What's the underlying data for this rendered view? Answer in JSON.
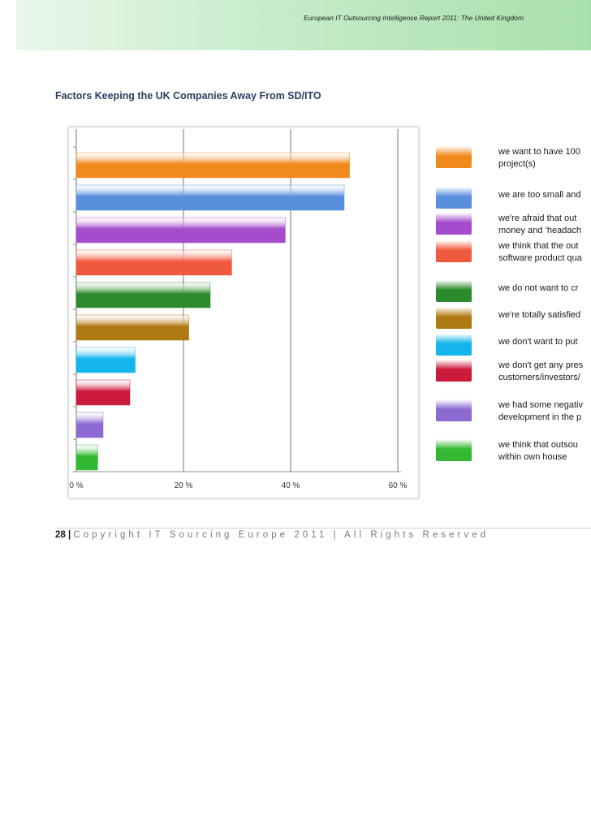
{
  "header": {
    "text": "European IT Outsourcing Intelligence Report 2011: The United Kingdom"
  },
  "title": "Factors Keeping the UK Companies Away From SD/ITO",
  "footer": {
    "page": "28 |",
    "copyright": "Copyright IT Sourcing Europe 2011 | All Rights Reserved"
  },
  "chart_data": {
    "type": "bar",
    "orientation": "horizontal",
    "xlim": [
      0,
      60
    ],
    "ticks": [
      "0 %",
      "20 %",
      "40 %",
      "60 %"
    ],
    "grid": true,
    "legend_position": "right",
    "categories": [
      "we want to have 100\nproject(s)",
      "we are too small and",
      "we're afraid that out\nmoney and ‘headach",
      "we think that the out\nsoftware product qua",
      "we do not want to cr",
      "we're totally satisfied",
      "we don't want to put",
      "we don't get any pres\ncustomers/investors/",
      "we had some negativ\ndevelopment in the p",
      "we think that outsou\nwithin own house"
    ],
    "values": [
      51,
      50,
      39,
      29,
      25,
      21,
      11,
      10,
      5,
      4
    ],
    "colors": [
      "#f08a1c",
      "#5a8fde",
      "#a54ccc",
      "#ef5a3e",
      "#2b8a2b",
      "#b07a12",
      "#14b4ec",
      "#cc1a3a",
      "#8c6ad2",
      "#33b833"
    ]
  }
}
